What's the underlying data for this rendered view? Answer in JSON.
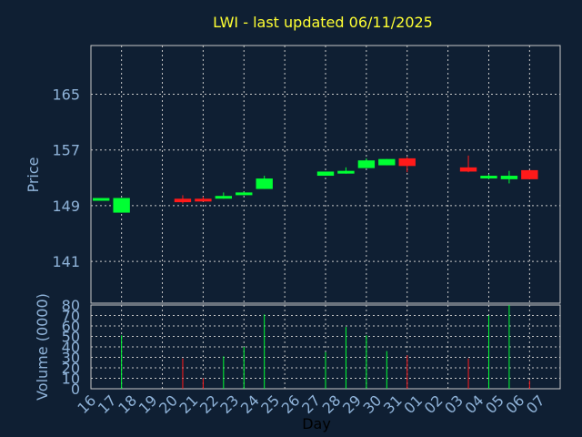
{
  "title": "LWI - last updated 06/11/2025",
  "colors": {
    "background": "#0f1f33",
    "up": "#00ff33",
    "down": "#ff1a1a",
    "title": "#ffff33",
    "axis_text": "#8fb3d9",
    "grid": "#c8c8c8"
  },
  "chart_data": [
    {
      "type": "candlestick",
      "ylabel": "Price",
      "ylim": [
        135,
        172
      ],
      "yticks": [
        141,
        149,
        157,
        165
      ],
      "grid": true,
      "x": [
        "16",
        "17",
        "18",
        "19",
        "20",
        "21",
        "22",
        "23",
        "24",
        "25",
        "26",
        "27",
        "28",
        "29",
        "30",
        "31",
        "01",
        "02",
        "03",
        "04",
        "05",
        "06",
        "07"
      ],
      "candles": [
        {
          "day": "16",
          "open": 149.9,
          "high": 150.1,
          "low": 149.7,
          "close": 150.1
        },
        {
          "day": "17",
          "open": 148.0,
          "high": 150.1,
          "low": 148.0,
          "close": 150.1
        },
        {
          "day": "20",
          "open": 150.0,
          "high": 150.5,
          "low": 149.3,
          "close": 149.5
        },
        {
          "day": "21",
          "open": 150.0,
          "high": 150.3,
          "low": 149.6,
          "close": 149.6
        },
        {
          "day": "22",
          "open": 150.2,
          "high": 150.9,
          "low": 150.0,
          "close": 150.4
        },
        {
          "day": "23",
          "open": 150.7,
          "high": 151.0,
          "low": 150.6,
          "close": 150.9
        },
        {
          "day": "24",
          "open": 151.4,
          "high": 153.3,
          "low": 151.4,
          "close": 152.9
        },
        {
          "day": "27",
          "open": 153.3,
          "high": 153.9,
          "low": 153.3,
          "close": 153.9
        },
        {
          "day": "28",
          "open": 153.7,
          "high": 154.5,
          "low": 153.6,
          "close": 154.0
        },
        {
          "day": "29",
          "open": 154.4,
          "high": 155.8,
          "low": 154.4,
          "close": 155.5
        },
        {
          "day": "30",
          "open": 154.8,
          "high": 155.7,
          "low": 154.8,
          "close": 155.7
        },
        {
          "day": "31",
          "open": 155.8,
          "high": 156.0,
          "low": 153.8,
          "close": 154.7
        },
        {
          "day": "03",
          "open": 154.5,
          "high": 156.2,
          "low": 153.8,
          "close": 153.9
        },
        {
          "day": "04",
          "open": 153.1,
          "high": 153.5,
          "low": 152.8,
          "close": 153.3
        },
        {
          "day": "05",
          "open": 152.8,
          "high": 154.0,
          "low": 152.2,
          "close": 153.3
        },
        {
          "day": "06",
          "open": 154.1,
          "high": 154.1,
          "low": 152.8,
          "close": 152.8
        }
      ]
    },
    {
      "type": "bar",
      "ylabel": "Volume (0000)",
      "xlabel": "Day",
      "ylim": [
        0,
        80
      ],
      "yticks": [
        0,
        10,
        20,
        30,
        40,
        50,
        60,
        70,
        80
      ],
      "grid": true,
      "x": [
        "16",
        "17",
        "18",
        "19",
        "20",
        "21",
        "22",
        "23",
        "24",
        "25",
        "26",
        "27",
        "28",
        "29",
        "30",
        "31",
        "01",
        "02",
        "03",
        "04",
        "05",
        "06",
        "07"
      ],
      "volumes": [
        {
          "day": "17",
          "value": 51,
          "direction": "up"
        },
        {
          "day": "20",
          "value": 29,
          "direction": "down"
        },
        {
          "day": "21",
          "value": 10,
          "direction": "down"
        },
        {
          "day": "22",
          "value": 31,
          "direction": "up"
        },
        {
          "day": "23",
          "value": 40,
          "direction": "up"
        },
        {
          "day": "24",
          "value": 71,
          "direction": "up"
        },
        {
          "day": "27",
          "value": 35,
          "direction": "up"
        },
        {
          "day": "28",
          "value": 59,
          "direction": "up"
        },
        {
          "day": "29",
          "value": 51,
          "direction": "up"
        },
        {
          "day": "30",
          "value": 36,
          "direction": "up"
        },
        {
          "day": "31",
          "value": 32,
          "direction": "down"
        },
        {
          "day": "03",
          "value": 29,
          "direction": "down"
        },
        {
          "day": "04",
          "value": 70,
          "direction": "up"
        },
        {
          "day": "05",
          "value": 80,
          "direction": "up"
        },
        {
          "day": "06",
          "value": 8,
          "direction": "down"
        }
      ]
    }
  ]
}
